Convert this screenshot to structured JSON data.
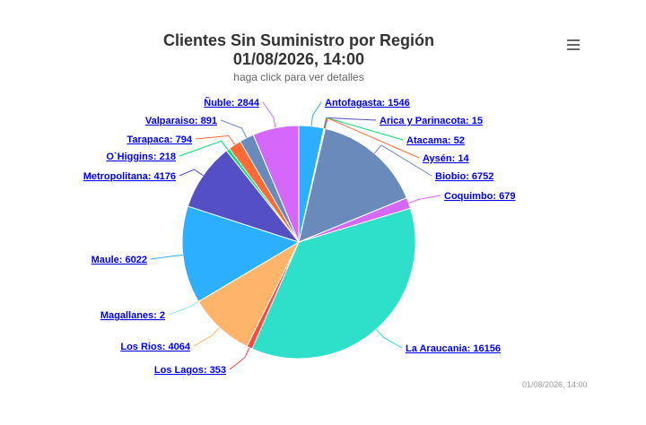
{
  "header": {
    "title_line1": "Clientes Sin Suministro por Región",
    "title_line2": "01/08/2026, 14:00",
    "subtitle": "haga click para ver detalles"
  },
  "menu": {
    "icon": "hamburger-menu-icon"
  },
  "credit": "01/08/2026, 14:00",
  "chart_data": {
    "type": "pie",
    "title": "Clientes Sin Suministro por Región",
    "subtitle": "haga click para ver detalles",
    "slices": [
      {
        "name": "Antofagasta",
        "value": 1546,
        "color": "#2caffe",
        "label": "Antofagasta: 1546"
      },
      {
        "name": "Arica y Parinacota",
        "value": 15,
        "color": "#544fc5",
        "label": "Arica y Parinacota: 15"
      },
      {
        "name": "Atacama",
        "value": 52,
        "color": "#00e272",
        "label": "Atacama: 52"
      },
      {
        "name": "Aysén",
        "value": 14,
        "color": "#fe6a35",
        "label": "Aysén: 14"
      },
      {
        "name": "Biobio",
        "value": 6752,
        "color": "#6b8abc",
        "label": "Biobio: 6752"
      },
      {
        "name": "Coquimbo",
        "value": 679,
        "color": "#d568fb",
        "label": "Coquimbo: 679"
      },
      {
        "name": "La Araucania",
        "value": 16156,
        "color": "#2ee0ca",
        "label": "La Araucania: 16156"
      },
      {
        "name": "Los Lagos",
        "value": 353,
        "color": "#fa4b42",
        "label": "Los Lagos: 353"
      },
      {
        "name": "Los Rios",
        "value": 4064,
        "color": "#feb56a",
        "label": "Los Rios: 4064"
      },
      {
        "name": "Magallanes",
        "value": 2,
        "color": "#91e8e1",
        "label": "Magallanes: 2"
      },
      {
        "name": "Maule",
        "value": 6022,
        "color": "#2caffe",
        "label": "Maule: 6022"
      },
      {
        "name": "Metropolitana",
        "value": 4176,
        "color": "#544fc5",
        "label": "Metropolitana: 4176"
      },
      {
        "name": "O`Higgins",
        "value": 218,
        "color": "#00e272",
        "label": "O`Higgins: 218"
      },
      {
        "name": "Tarapaca",
        "value": 794,
        "color": "#fe6a35",
        "label": "Tarapaca: 794"
      },
      {
        "name": "Valparaiso",
        "value": 891,
        "color": "#6b8abc",
        "label": "Valparaiso: 891"
      },
      {
        "name": "Ñuble",
        "value": 2844,
        "color": "#d568fb",
        "label": "Ñuble: 2844"
      }
    ]
  }
}
